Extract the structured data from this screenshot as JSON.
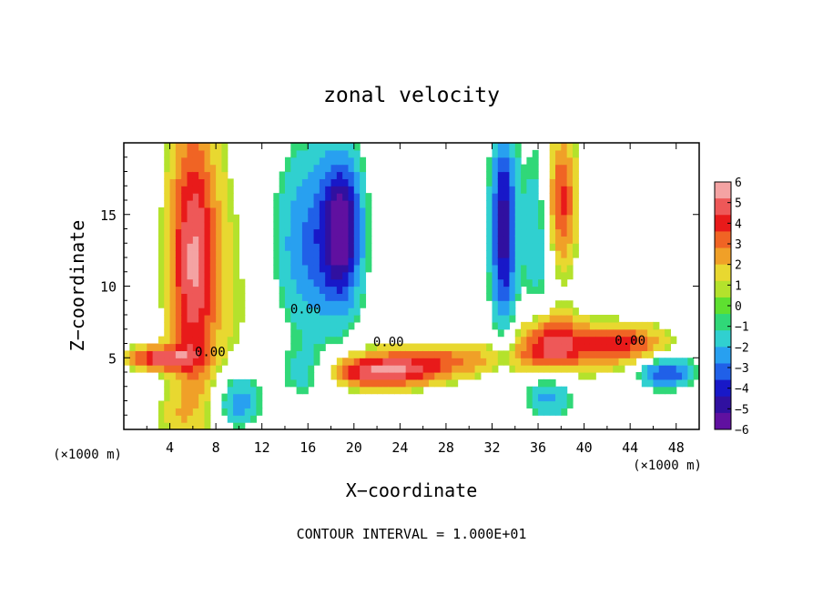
{
  "chart_data": {
    "type": "heatmap",
    "title": "zonal velocity",
    "xlabel": "X−coordinate",
    "ylabel": "Z−coordinate",
    "x_unit_left": "(×1000 m)",
    "x_unit_right": "(×1000 m)",
    "footer": "CONTOUR INTERVAL = 1.000E+01",
    "xlim": [
      0,
      50
    ],
    "ylim": [
      0,
      20
    ],
    "xticks": [
      4,
      8,
      12,
      16,
      20,
      24,
      28,
      32,
      36,
      40,
      44,
      48
    ],
    "xtick_labels": [
      "4",
      "8",
      "12",
      "16",
      "20",
      "24",
      "28",
      "32",
      "36",
      "40",
      "44",
      "48"
    ],
    "yticks": [
      5,
      10,
      15
    ],
    "ytick_labels": [
      "5",
      "10",
      "15"
    ],
    "contour_labels": [
      {
        "text": "0.00",
        "x": 7.5,
        "y": 5.1
      },
      {
        "text": "0.00",
        "x": 15.8,
        "y": 8.1
      },
      {
        "text": "0.00",
        "x": 23.0,
        "y": 5.8
      },
      {
        "text": "0.00",
        "x": 44.0,
        "y": 5.9
      }
    ],
    "colorbar": {
      "range": [
        -6,
        6
      ],
      "tick_labels": [
        "6",
        "5",
        "4",
        "3",
        "2",
        "1",
        "0",
        "−1",
        "−2",
        "−3",
        "−4",
        "−5",
        "−6"
      ],
      "colors": [
        "#f4a3a3",
        "#ee5858",
        "#e81a1a",
        "#f06424",
        "#f0a028",
        "#e8d830",
        "#b4e22c",
        "#5ee030",
        "#30d878",
        "#30d0d0",
        "#28a0f0",
        "#2060e8",
        "#1818c8",
        "#3010a0",
        "#6010a0"
      ]
    },
    "series": [
      {
        "x": 6,
        "y": 12,
        "value": 5.0,
        "sx": 1.5,
        "sy": 7.0
      },
      {
        "x": 10,
        "y": 10,
        "value": 1.0,
        "sx": 3.0,
        "sy": 8.0
      },
      {
        "x": 16,
        "y": 13,
        "value": -3.0,
        "sx": 2.5,
        "sy": 5.0
      },
      {
        "x": 19,
        "y": 14,
        "value": -5.0,
        "sx": 1.2,
        "sy": 3.5
      },
      {
        "x": 16,
        "y": 4,
        "value": -2.5,
        "sx": 2.0,
        "sy": 1.0
      },
      {
        "x": 22,
        "y": 4,
        "value": 5.0,
        "sx": 4.0,
        "sy": 0.8
      },
      {
        "x": 28,
        "y": 5,
        "value": 2.5,
        "sx": 5.0,
        "sy": 0.8
      },
      {
        "x": 33,
        "y": 14,
        "value": -5.0,
        "sx": 0.8,
        "sy": 5.0
      },
      {
        "x": 36,
        "y": 14,
        "value": -2.0,
        "sx": 1.0,
        "sy": 5.0
      },
      {
        "x": 38,
        "y": 16,
        "value": 4.0,
        "sx": 1.0,
        "sy": 3.5
      },
      {
        "x": 37,
        "y": 6,
        "value": 4.5,
        "sx": 2.0,
        "sy": 1.5
      },
      {
        "x": 43,
        "y": 6,
        "value": 4.0,
        "sx": 3.0,
        "sy": 1.0
      },
      {
        "x": 42,
        "y": 4,
        "value": 0.5,
        "sx": 3.5,
        "sy": 1.2
      },
      {
        "x": 47,
        "y": 4,
        "value": -4.0,
        "sx": 1.8,
        "sy": 0.8
      },
      {
        "x": 37,
        "y": 2.5,
        "value": -2.5,
        "sx": 1.5,
        "sy": 1.2
      },
      {
        "x": 3,
        "y": 5,
        "value": 4.5,
        "sx": 2.0,
        "sy": 0.6
      },
      {
        "x": 4,
        "y": 1,
        "value": 1.0,
        "sx": 1.5,
        "sy": 1.0
      },
      {
        "x": 10,
        "y": 2,
        "value": -3.0,
        "sx": 1.5,
        "sy": 1.5
      }
    ]
  }
}
